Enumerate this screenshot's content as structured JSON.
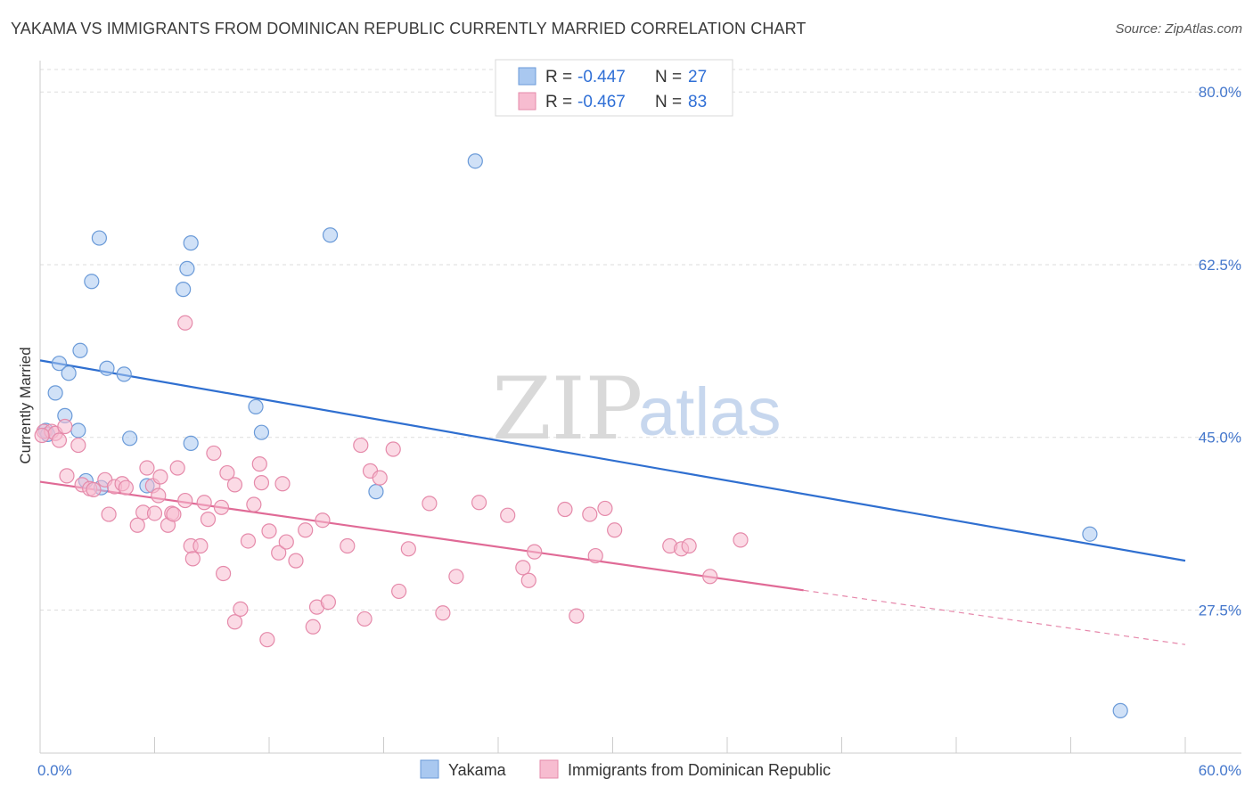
{
  "title": "YAKAMA VS IMMIGRANTS FROM DOMINICAN REPUBLIC CURRENTLY MARRIED CORRELATION CHART",
  "source": "Source: ZipAtlas.com",
  "watermark": {
    "zip": "ZIP",
    "atlas": "atlas"
  },
  "legend": {
    "r_label": "R =",
    "n_label": "N =",
    "rows": [
      {
        "r": "-0.447",
        "n": "27",
        "color": "#a9c8f0",
        "stroke": "#6a9ad8"
      },
      {
        "r": "-0.467",
        "n": "83",
        "color": "#f7bcd0",
        "stroke": "#e58aaa"
      }
    ]
  },
  "chart_data": {
    "type": "scatter",
    "xlabel": "",
    "ylabel": "Currently Married",
    "xlim": [
      0,
      60
    ],
    "ylim": [
      13,
      83
    ],
    "x_tick_labels": [
      "0.0%",
      "60.0%"
    ],
    "y_ticks": [
      27.5,
      45.0,
      62.5,
      80.0
    ],
    "y_tick_labels": [
      "27.5%",
      "45.0%",
      "62.5%",
      "80.0%"
    ],
    "grid": true,
    "legend_position": "top-center",
    "series": [
      {
        "name": "Yakama",
        "color": "#a9c8f0",
        "stroke": "#6a9ad8",
        "line_color": "#2f6fd0",
        "trend": {
          "x0": 0,
          "y0": 52.8,
          "x1": 60,
          "y1": 32.5,
          "dash_from": null
        },
        "points": [
          [
            0.3,
            45.7
          ],
          [
            1.0,
            52.5
          ],
          [
            0.8,
            49.5
          ],
          [
            1.5,
            51.5
          ],
          [
            1.3,
            47.2
          ],
          [
            2.0,
            45.7
          ],
          [
            2.1,
            53.8
          ],
          [
            2.7,
            60.8
          ],
          [
            3.1,
            65.2
          ],
          [
            3.5,
            52.0
          ],
          [
            4.4,
            51.4
          ],
          [
            4.7,
            44.9
          ],
          [
            2.4,
            40.6
          ],
          [
            3.2,
            39.9
          ],
          [
            5.6,
            40.1
          ],
          [
            7.5,
            60.0
          ],
          [
            7.7,
            62.1
          ],
          [
            7.9,
            64.7
          ],
          [
            7.9,
            44.4
          ],
          [
            11.3,
            48.1
          ],
          [
            11.6,
            45.5
          ],
          [
            15.2,
            65.5
          ],
          [
            17.6,
            39.5
          ],
          [
            22.8,
            73.0
          ],
          [
            55.0,
            35.2
          ],
          [
            56.6,
            17.3
          ],
          [
            0.4,
            45.3
          ]
        ]
      },
      {
        "name": "Immigrants from Dominican Republic",
        "color": "#f7bcd0",
        "stroke": "#e58aaa",
        "line_color": "#e06a96",
        "trend": {
          "x0": 0,
          "y0": 40.5,
          "x1": 60,
          "y1": 24.0,
          "dash_from": 40.0
        },
        "points": [
          [
            0.2,
            45.6
          ],
          [
            0.6,
            45.6
          ],
          [
            0.8,
            45.4
          ],
          [
            1.3,
            46.1
          ],
          [
            1.0,
            44.7
          ],
          [
            1.4,
            41.1
          ],
          [
            2.0,
            44.2
          ],
          [
            2.2,
            40.2
          ],
          [
            2.6,
            39.8
          ],
          [
            2.8,
            39.7
          ],
          [
            3.4,
            40.7
          ],
          [
            3.9,
            40.0
          ],
          [
            4.3,
            40.3
          ],
          [
            3.6,
            37.2
          ],
          [
            4.5,
            39.9
          ],
          [
            5.4,
            37.4
          ],
          [
            5.1,
            36.1
          ],
          [
            5.9,
            40.1
          ],
          [
            5.6,
            41.9
          ],
          [
            6.3,
            41.0
          ],
          [
            6.2,
            39.1
          ],
          [
            6.0,
            37.3
          ],
          [
            6.7,
            36.1
          ],
          [
            6.9,
            37.3
          ],
          [
            7.2,
            41.9
          ],
          [
            7.0,
            37.2
          ],
          [
            7.6,
            38.6
          ],
          [
            7.6,
            56.6
          ],
          [
            7.9,
            34.0
          ],
          [
            8.0,
            32.7
          ],
          [
            8.4,
            34.0
          ],
          [
            8.6,
            38.4
          ],
          [
            8.8,
            36.7
          ],
          [
            9.1,
            43.4
          ],
          [
            9.5,
            37.9
          ],
          [
            9.6,
            31.2
          ],
          [
            9.8,
            41.4
          ],
          [
            10.2,
            40.2
          ],
          [
            10.2,
            26.3
          ],
          [
            10.5,
            27.6
          ],
          [
            10.9,
            34.5
          ],
          [
            11.2,
            38.2
          ],
          [
            11.5,
            42.3
          ],
          [
            11.6,
            40.4
          ],
          [
            11.9,
            24.5
          ],
          [
            12.0,
            35.5
          ],
          [
            12.5,
            33.3
          ],
          [
            12.7,
            40.3
          ],
          [
            12.9,
            34.4
          ],
          [
            13.4,
            32.5
          ],
          [
            13.9,
            35.6
          ],
          [
            14.3,
            25.8
          ],
          [
            14.5,
            27.8
          ],
          [
            14.8,
            36.6
          ],
          [
            15.1,
            28.3
          ],
          [
            16.1,
            34.0
          ],
          [
            16.8,
            44.2
          ],
          [
            17.0,
            26.6
          ],
          [
            17.3,
            41.6
          ],
          [
            17.8,
            40.9
          ],
          [
            18.5,
            43.8
          ],
          [
            18.8,
            29.4
          ],
          [
            19.3,
            33.7
          ],
          [
            20.4,
            38.3
          ],
          [
            21.1,
            27.2
          ],
          [
            21.8,
            30.9
          ],
          [
            23.0,
            38.4
          ],
          [
            24.5,
            37.1
          ],
          [
            25.3,
            31.8
          ],
          [
            25.6,
            30.5
          ],
          [
            25.9,
            33.4
          ],
          [
            27.5,
            37.7
          ],
          [
            28.1,
            26.9
          ],
          [
            28.8,
            37.2
          ],
          [
            29.1,
            33.0
          ],
          [
            29.6,
            37.8
          ],
          [
            30.1,
            35.6
          ],
          [
            33.0,
            34.0
          ],
          [
            33.6,
            33.7
          ],
          [
            34.0,
            34.0
          ],
          [
            35.1,
            30.9
          ],
          [
            36.7,
            34.6
          ],
          [
            0.1,
            45.2
          ]
        ]
      }
    ]
  }
}
